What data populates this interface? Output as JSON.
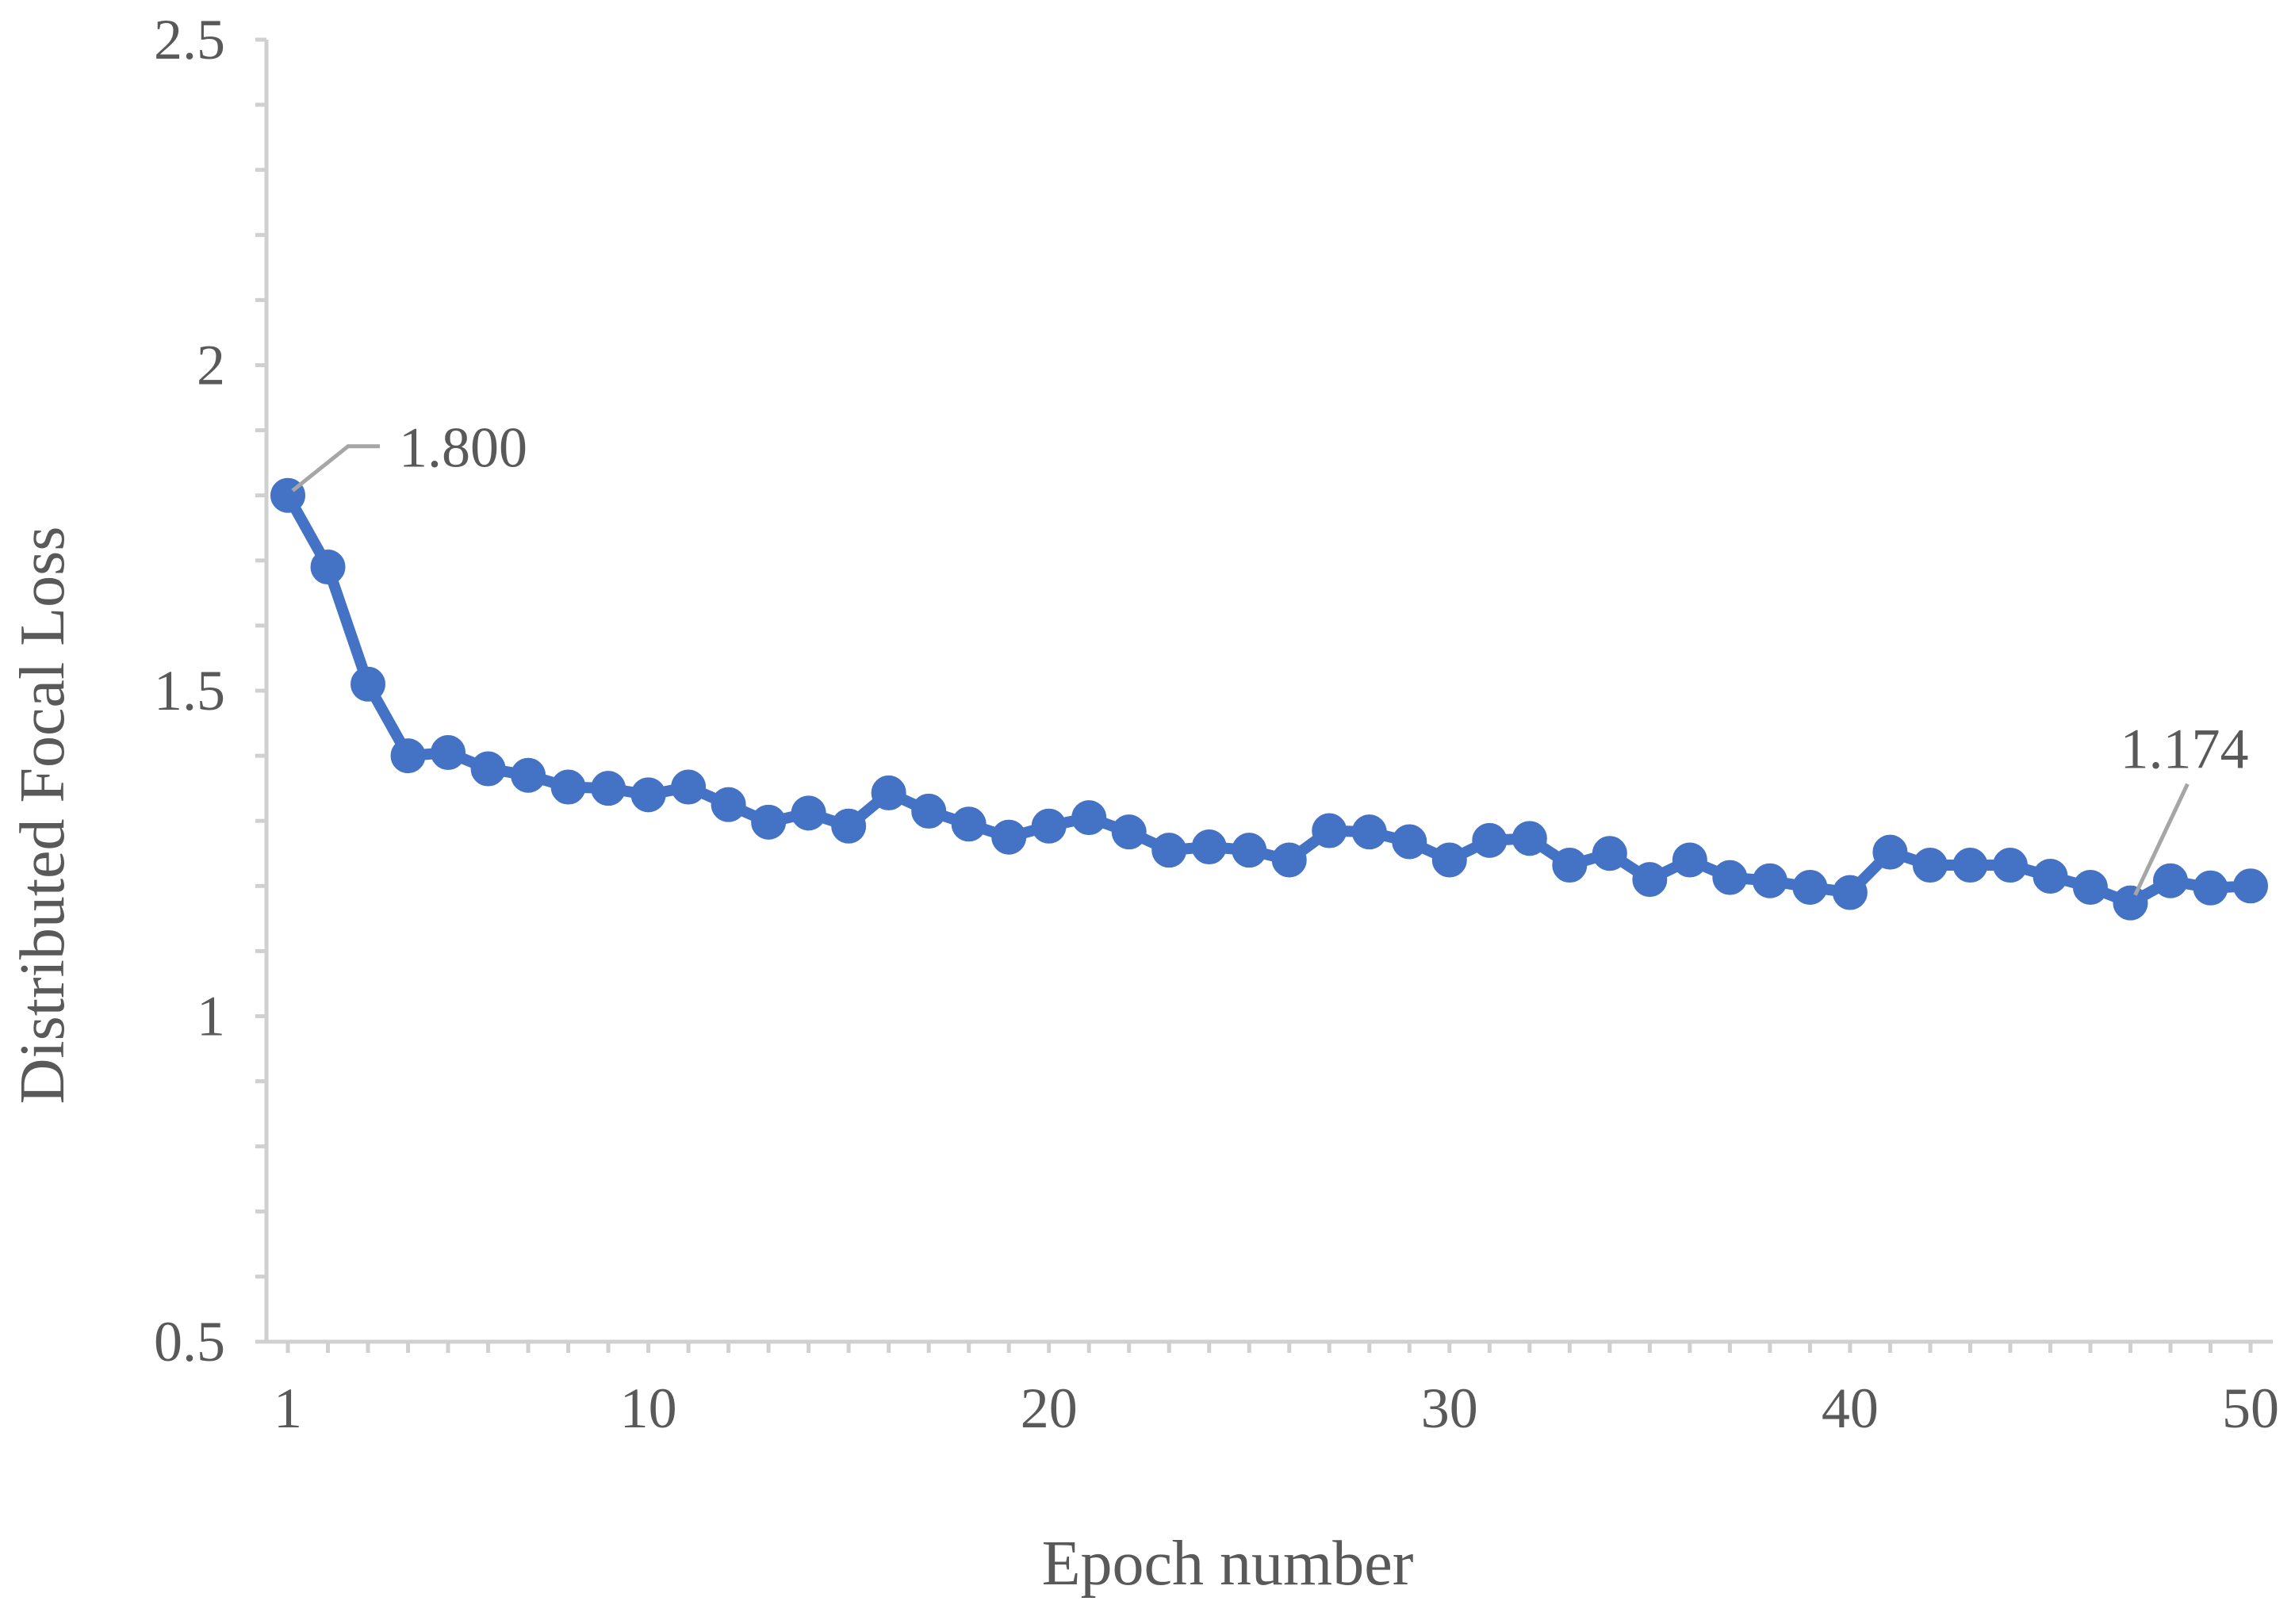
{
  "colors": {
    "series": "#4472C4",
    "axis": "#D0D0D0",
    "text": "#595959",
    "leader": "#A6A6A6"
  },
  "chart_data": {
    "type": "line",
    "title": "",
    "xlabel": "Epoch number",
    "ylabel": "Distributed Focal Loss",
    "xlim": [
      1,
      50
    ],
    "ylim": [
      0.5,
      2.5
    ],
    "x_ticks": [
      1,
      10,
      20,
      30,
      40,
      50
    ],
    "y_ticks": [
      0.5,
      1,
      1.5,
      2,
      2.5
    ],
    "y_minor_step": 0.1,
    "grid": false,
    "legend": "none",
    "series": [
      {
        "x": [
          1,
          2,
          3,
          4,
          5,
          6,
          7,
          8,
          9,
          10,
          11,
          12,
          13,
          14,
          15,
          16,
          17,
          18,
          19,
          20,
          21,
          22,
          23,
          24,
          25,
          26,
          27,
          28,
          29,
          30,
          31,
          32,
          33,
          34,
          35,
          36,
          37,
          38,
          39,
          40,
          41,
          42,
          43,
          44,
          45,
          46,
          47,
          48,
          49,
          50
        ],
        "values": [
          1.8,
          1.69,
          1.51,
          1.4,
          1.405,
          1.38,
          1.37,
          1.352,
          1.35,
          1.34,
          1.352,
          1.325,
          1.298,
          1.312,
          1.292,
          1.343,
          1.315,
          1.295,
          1.275,
          1.292,
          1.305,
          1.283,
          1.255,
          1.26,
          1.255,
          1.24,
          1.285,
          1.283,
          1.268,
          1.24,
          1.27,
          1.273,
          1.232,
          1.25,
          1.21,
          1.24,
          1.213,
          1.208,
          1.198,
          1.19,
          1.252,
          1.232,
          1.232,
          1.232,
          1.215,
          1.198,
          1.174,
          1.208,
          1.197,
          1.2
        ]
      }
    ],
    "annotations": [
      {
        "index": 0,
        "text": "1.800",
        "side": "upper-right"
      },
      {
        "index": 46,
        "text": "1.174",
        "side": "upper-right"
      }
    ]
  }
}
